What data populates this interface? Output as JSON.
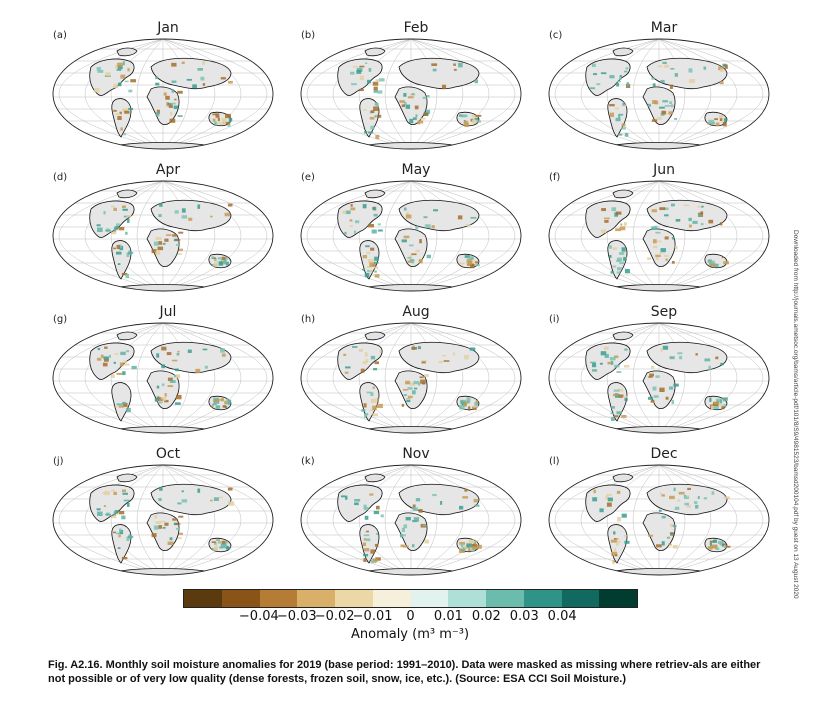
{
  "panels": [
    {
      "letter": "(a)",
      "month": "Jan"
    },
    {
      "letter": "(b)",
      "month": "Feb"
    },
    {
      "letter": "(c)",
      "month": "Mar"
    },
    {
      "letter": "(d)",
      "month": "Apr"
    },
    {
      "letter": "(e)",
      "month": "May"
    },
    {
      "letter": "(f)",
      "month": "Jun"
    },
    {
      "letter": "(g)",
      "month": "Jul"
    },
    {
      "letter": "(h)",
      "month": "Aug"
    },
    {
      "letter": "(i)",
      "month": "Sep"
    },
    {
      "letter": "(j)",
      "month": "Oct"
    },
    {
      "letter": "(k)",
      "month": "Nov"
    },
    {
      "letter": "(l)",
      "month": "Dec"
    }
  ],
  "colorbar": {
    "colors": [
      "#5a3a0e",
      "#8a5419",
      "#b47c35",
      "#d8b06a",
      "#ecd8a6",
      "#f6efdc",
      "#e2f2ef",
      "#aee0d7",
      "#6cbcae",
      "#2f9388",
      "#11695f",
      "#003c30"
    ],
    "ticks": [
      "−0.04",
      "−0.03",
      "−0.02",
      "−0.01",
      "0",
      "0.01",
      "0.02",
      "0.03",
      "0.04"
    ],
    "label": "Anomaly (m³ m⁻³)"
  },
  "caption": {
    "bold": "Fig. A2.16. Monthly soil moisture anomalies for 2019 (base period: 1991–2010). Data were masked as missing where retriev-als are either not possible or of very low quality (dense forests, frozen soil, snow, ice, etc.). (Source: ESA CCI Soil Moisture.)"
  },
  "side_note": "Downloaded from http://journals.ametsoc.org/bams/article-pdf/101/8/S9/4981523/bamsd200104.pdf by guest on 13 August 2020"
}
